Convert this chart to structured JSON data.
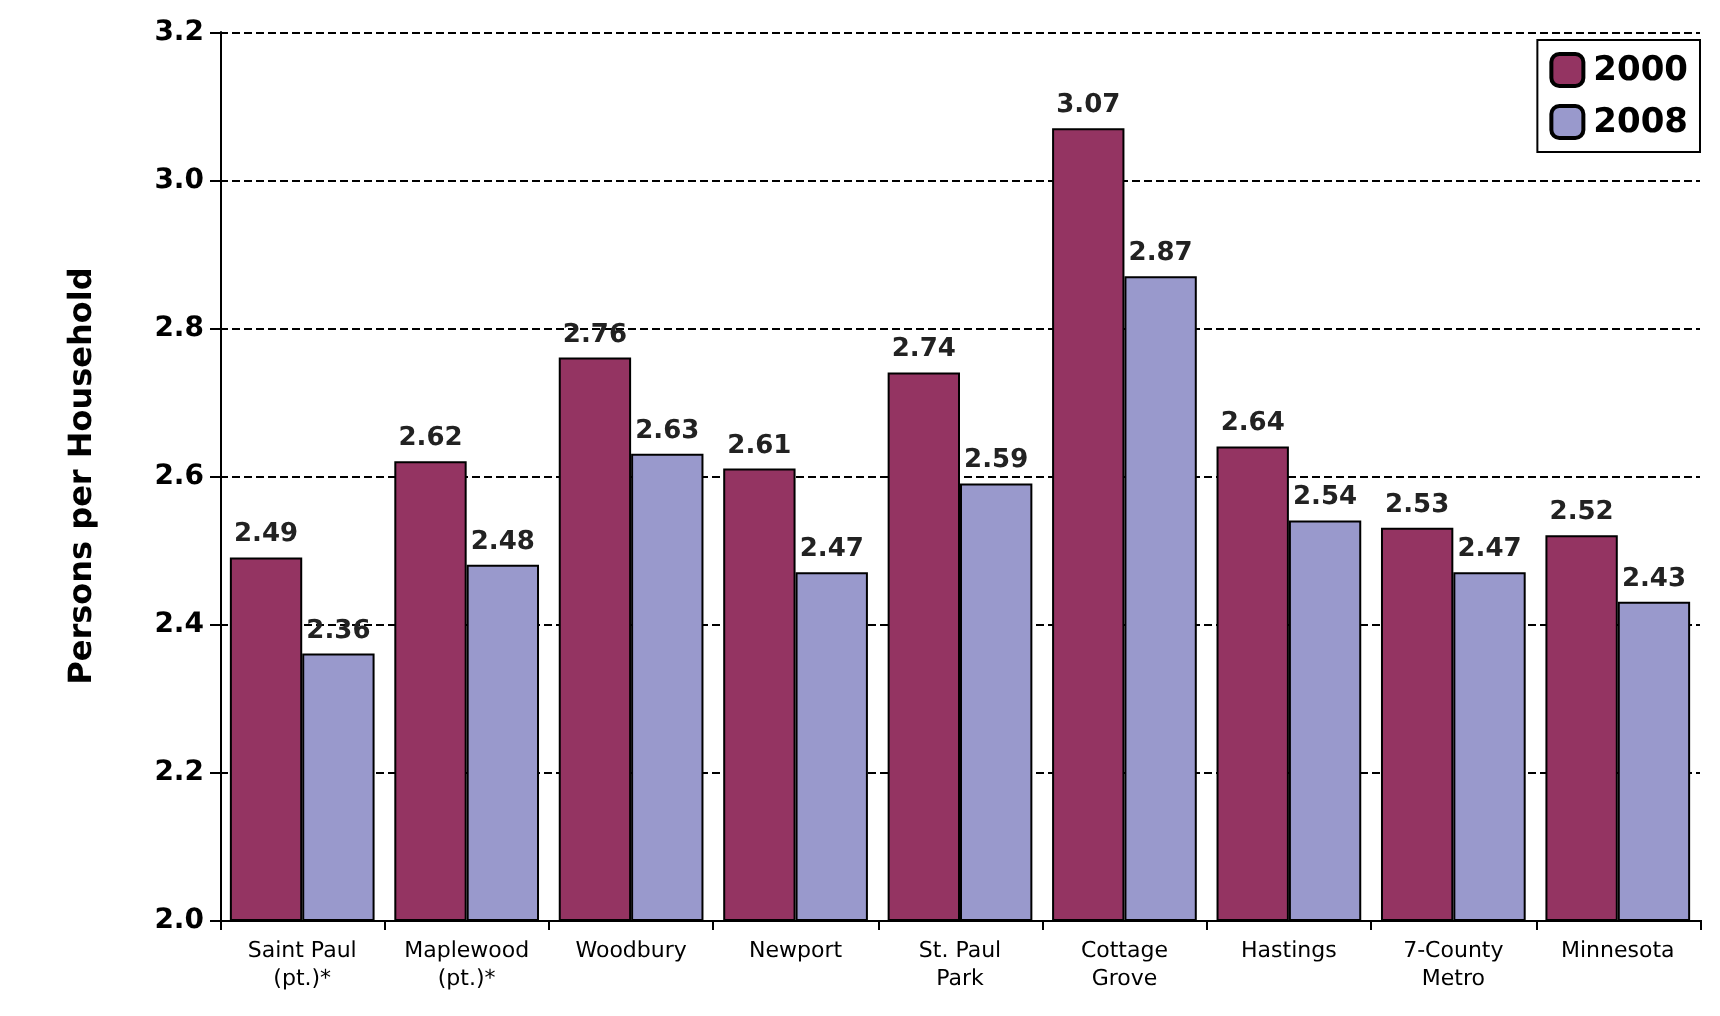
{
  "chart_data": {
    "type": "bar",
    "ylabel": "Persons per Household",
    "categories": [
      "Saint Paul\n(pt.)*",
      "Maplewood\n(pt.)*",
      "Woodbury",
      "Newport",
      "St. Paul\nPark",
      "Cottage\nGrove",
      "Hastings",
      "7-County\nMetro",
      "Minnesota"
    ],
    "series": [
      {
        "name": "2000",
        "color": "#943462",
        "values": [
          2.49,
          2.62,
          2.76,
          2.61,
          2.74,
          3.07,
          2.64,
          2.53,
          2.52
        ]
      },
      {
        "name": "2008",
        "color": "#9999cc",
        "values": [
          2.36,
          2.48,
          2.63,
          2.47,
          2.59,
          2.87,
          2.54,
          2.47,
          2.43
        ]
      }
    ],
    "ylim": [
      2.0,
      3.2
    ],
    "yticks": [
      {
        "value": 2.0,
        "label": "2.0"
      },
      {
        "value": 2.2,
        "label": "2.2"
      },
      {
        "value": 2.4,
        "label": "2.4"
      },
      {
        "value": 2.6,
        "label": "2.6"
      },
      {
        "value": 2.8,
        "label": "2.8"
      },
      {
        "value": 3.0,
        "label": "3.0"
      },
      {
        "value": 3.2,
        "label": "3.2"
      }
    ],
    "grid": "y",
    "legend": "top right",
    "data_labels": true
  }
}
